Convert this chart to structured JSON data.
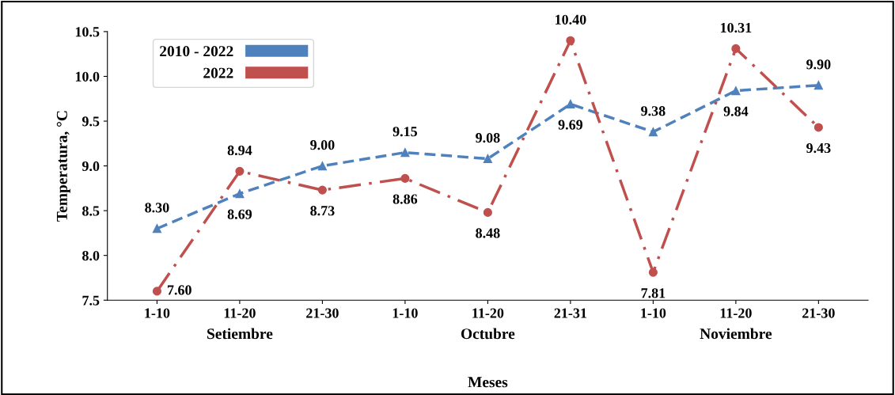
{
  "chart_data": {
    "type": "line",
    "ylabel": "Temperatura, °C",
    "xlabel": "Meses",
    "categories": [
      "1-10",
      "11-20",
      "21-30",
      "1-10",
      "11-20",
      "21-31",
      "1-10",
      "11-20",
      "21-30"
    ],
    "series": [
      {
        "name": "2010 - 2022",
        "color": "#4f81bd",
        "marker": "triangle",
        "line_style": "dashed",
        "values": [
          8.3,
          8.69,
          9.0,
          9.15,
          9.08,
          9.69,
          9.38,
          9.84,
          9.9
        ],
        "value_labels": [
          "8.30",
          "8.69",
          "9.00",
          "9.15",
          "9.08",
          "9.69",
          "9.38",
          "9.84",
          "9.90"
        ]
      },
      {
        "name": "2022",
        "color": "#c0504d",
        "marker": "circle",
        "line_style": "dashdot",
        "values": [
          7.6,
          8.94,
          8.73,
          8.86,
          8.48,
          10.4,
          7.81,
          10.31,
          9.43
        ],
        "value_labels": [
          "7.60",
          "8.94",
          "8.73",
          "8.86",
          "8.48",
          "10.40",
          "7.81",
          "10.31",
          "9.43"
        ]
      }
    ],
    "ylim": [
      7.5,
      10.5
    ],
    "yticks": [
      7.5,
      {
        "value": 8,
        "label": "8.0"
      },
      8.5,
      {
        "value": 9,
        "label": "9.0"
      },
      9.5,
      {
        "value": 10,
        "label": "10.0"
      },
      10.5
    ],
    "annotations": [
      "Setiembre",
      "Octubre",
      "Noviembre"
    ],
    "grid": false,
    "legend": "top left"
  }
}
